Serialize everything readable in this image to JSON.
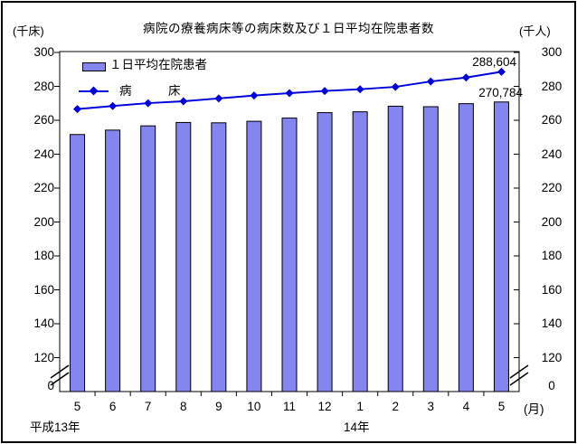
{
  "chart_data": {
    "type": "combo-bar-line",
    "title": "病院の療養病床等の病床数及び１日平均在院患者数",
    "left_axis_unit": "(千床)",
    "right_axis_unit": "(千人)",
    "x_unit": "(月)",
    "categories": [
      "5",
      "6",
      "7",
      "8",
      "9",
      "10",
      "11",
      "12",
      "1",
      "2",
      "3",
      "4",
      "5"
    ],
    "year_labels": [
      {
        "text": "平成13年",
        "starts_at_month": "5"
      },
      {
        "text": "14年",
        "starts_at_month": "1"
      }
    ],
    "y_ticks": [
      300,
      280,
      260,
      240,
      220,
      200,
      180,
      160,
      140,
      120,
      0
    ],
    "ylim": [
      0,
      300
    ],
    "axis_break": {
      "between": [
        0,
        120
      ]
    },
    "grid": "off",
    "legend_position": "top-left-inside",
    "series": [
      {
        "name": "１日平均在院患者",
        "type": "bar",
        "color": "#8585F0",
        "values": [
          251.6,
          254.2,
          256.7,
          258.7,
          258.5,
          259.4,
          261.3,
          264.5,
          265.0,
          268.3,
          268.0,
          269.8,
          270.784
        ]
      },
      {
        "name": "病　　　床",
        "type": "line",
        "color": "#0000DD",
        "values": [
          266.6,
          268.4,
          270.1,
          271.2,
          272.9,
          274.6,
          276.0,
          277.3,
          278.3,
          279.7,
          282.9,
          285.2,
          288.604
        ]
      }
    ],
    "annotations": [
      {
        "text": "288,604",
        "series": "病床",
        "category": "5",
        "note": "last line point"
      },
      {
        "text": "270,784",
        "series": "１日平均在院患者",
        "category": "5",
        "note": "last bar"
      }
    ]
  }
}
